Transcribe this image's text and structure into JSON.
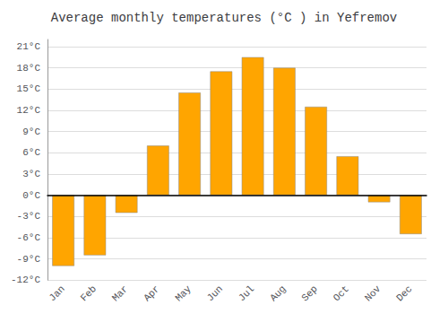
{
  "chart_data": {
    "type": "bar",
    "title": "Average monthly temperatures (°C ) in Yefremov",
    "categories": [
      "Jan",
      "Feb",
      "Mar",
      "Apr",
      "May",
      "Jun",
      "Jul",
      "Aug",
      "Sep",
      "Oct",
      "Nov",
      "Dec"
    ],
    "values": [
      -10.0,
      -8.5,
      -2.5,
      7.0,
      14.5,
      17.5,
      19.5,
      18.0,
      12.5,
      5.5,
      -1.0,
      -5.5
    ],
    "color": "#FFA500",
    "ylim": [
      -12,
      22
    ],
    "yticks": [
      {
        "value": -12,
        "label": "-12°C"
      },
      {
        "value": -9,
        "label": "-9°C"
      },
      {
        "value": -6,
        "label": "-6°C"
      },
      {
        "value": -3,
        "label": "-3°C"
      },
      {
        "value": 0,
        "label": "0°C"
      },
      {
        "value": 3,
        "label": "3°C"
      },
      {
        "value": 6,
        "label": "6°C"
      },
      {
        "value": 9,
        "label": "9°C"
      },
      {
        "value": 12,
        "label": "12°C"
      },
      {
        "value": 15,
        "label": "15°C"
      },
      {
        "value": 18,
        "label": "18°C"
      },
      {
        "value": 21,
        "label": "21°C"
      }
    ],
    "grid": true
  }
}
